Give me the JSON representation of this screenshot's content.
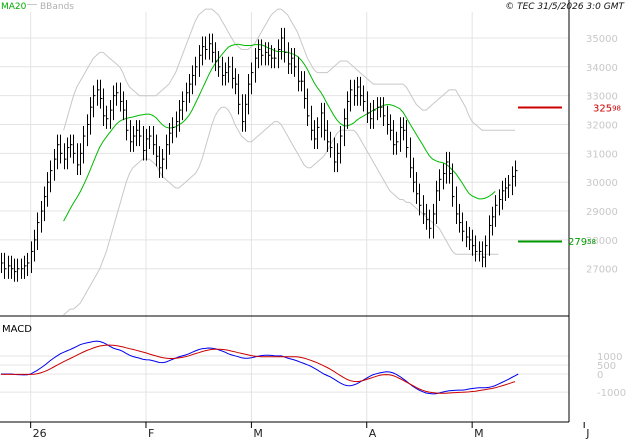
{
  "header": {
    "ma_label": "MA20",
    "bb_label": "BBands",
    "copyright": "© TEC 31/5/2026 3:0 GMT"
  },
  "macd_label": "MACD",
  "levels": [
    {
      "name": "resistance",
      "value": 325.98,
      "label_int": "325",
      "label_dec": "98",
      "color": "#cc0000"
    },
    {
      "name": "support",
      "value": 279.58,
      "label_int": "279",
      "label_dec": "58",
      "color": "#009900"
    }
  ],
  "colors": {
    "grid": "#e4e4e4",
    "bands": "#c8c8c8",
    "ma": "#00bb00",
    "bars": "#000000",
    "macd": "#0000ee",
    "signal": "#cc0000",
    "tick_text": "#c8c8c8",
    "ma_label": "#00aa00",
    "bb_label": "#b0b0b0"
  },
  "chart_data": [
    {
      "type": "ohlc",
      "title": "",
      "y_axis_side": "right",
      "ylim": [
        255,
        359
      ],
      "yticks": [
        270,
        280,
        290,
        300,
        310,
        320,
        330,
        340,
        350
      ],
      "ytick_labels": [
        "27000",
        "28000",
        "29000",
        "30000",
        "31000",
        "32000",
        "33000",
        "34000",
        "35000"
      ],
      "xticks": [
        {
          "label": "26",
          "index": 9
        },
        {
          "label": "F",
          "index": 44
        },
        {
          "label": "M",
          "index": 76
        },
        {
          "label": "A",
          "index": 111
        },
        {
          "label": "M",
          "index": 143
        },
        {
          "label": "J",
          "index": 177
        }
      ],
      "closes": [
        272,
        270,
        271,
        270,
        269,
        270,
        270,
        271,
        272,
        276,
        280,
        286,
        290,
        295,
        300,
        304,
        308,
        313,
        310,
        308,
        312,
        313,
        310,
        306,
        310,
        316,
        320,
        326,
        330,
        332,
        329,
        323,
        322,
        325,
        330,
        331,
        328,
        325,
        318,
        314,
        316,
        318,
        316,
        311,
        315,
        316,
        313,
        309,
        305,
        308,
        313,
        317,
        319,
        321,
        325,
        328,
        331,
        334,
        337,
        340,
        344,
        347,
        346,
        348,
        345,
        342,
        340,
        337,
        338,
        340,
        336,
        334,
        327,
        321,
        327,
        334,
        338,
        343,
        346,
        344,
        345,
        344,
        343,
        343,
        346,
        350,
        345,
        341,
        343,
        340,
        335,
        335,
        329,
        323,
        318,
        315,
        319,
        324,
        318,
        314,
        312,
        307,
        310,
        316,
        322,
        328,
        332,
        330,
        333,
        330,
        328,
        324,
        322,
        325,
        326,
        326,
        323,
        320,
        318,
        313,
        314,
        319,
        318,
        312,
        305,
        300,
        296,
        292,
        289,
        287,
        284,
        289,
        297,
        301,
        303,
        307,
        303,
        295,
        289,
        286,
        283,
        281,
        280,
        278,
        276,
        276,
        274,
        278,
        285,
        288,
        292,
        294,
        297,
        298,
        299,
        302,
        304
      ],
      "series": [
        {
          "name": "MA20",
          "values": [
            null,
            null,
            null,
            null,
            null,
            null,
            null,
            null,
            null,
            null,
            null,
            null,
            null,
            null,
            null,
            null,
            null,
            null,
            null,
            286.5,
            288.6,
            290.8,
            292.8,
            294.6,
            296.6,
            298.9,
            301.4,
            304.1,
            306.9,
            309.7,
            312.2,
            314.1,
            315.7,
            317.2,
            318.7,
            320.1,
            321.1,
            321.7,
            322.1,
            322.4,
            322.6,
            322.9,
            323.2,
            323.4,
            323.6,
            323.6,
            323.2,
            322.4,
            321.1,
            319.9,
            319.1,
            318.8,
            318.9,
            319.2,
            319.9,
            320.6,
            321.7,
            323.1,
            325.0,
            327.3,
            329.7,
            332.2,
            334.6,
            337.1,
            339.3,
            341.1,
            342.8,
            344.2,
            345.6,
            346.8,
            347.4,
            347.7,
            347.8,
            347.6,
            347.4,
            347.4,
            347.4,
            347.7,
            347.7,
            347.6,
            347.2,
            346.6,
            346.2,
            345.6,
            345.3,
            345.3,
            345.2,
            345.0,
            344.7,
            344.3,
            343.6,
            342.5,
            341.0,
            339.1,
            336.8,
            334.6,
            332.8,
            331.3,
            329.4,
            327.2,
            325.2,
            323.2,
            321.5,
            320.3,
            319.6,
            319.5,
            319.9,
            320.5,
            321.5,
            322.3,
            322.9,
            323.6,
            324.2,
            325.0,
            325.5,
            326.1,
            326.6,
            326.9,
            326.9,
            326.6,
            326.1,
            325.5,
            324.3,
            322.4,
            320.4,
            318.5,
            316.6,
            314.8,
            313.0,
            311.0,
            309.2,
            308.0,
            307.4,
            307.0,
            306.8,
            306.3,
            305.4,
            304.2,
            303.0,
            301.4,
            299.7,
            297.8,
            296.1,
            295.2,
            294.7,
            294.2,
            294.2,
            294.5,
            295.0,
            295.8,
            296.8
          ]
        },
        {
          "name": "BBands upper",
          "values": [
            null,
            null,
            null,
            null,
            null,
            null,
            null,
            null,
            null,
            null,
            null,
            null,
            null,
            null,
            null,
            null,
            null,
            null,
            null,
            318,
            322,
            326,
            330,
            333,
            335,
            337,
            339,
            341,
            343,
            344,
            345,
            345,
            344,
            343,
            342,
            341,
            340,
            338,
            335,
            333,
            332,
            331,
            330,
            330,
            330,
            330,
            330,
            330,
            331,
            332,
            333,
            334,
            336,
            338,
            341,
            344,
            347,
            350,
            353,
            356,
            358,
            359,
            360,
            360,
            360,
            359,
            358,
            356,
            354,
            352,
            350,
            348,
            347,
            346,
            346,
            346,
            347,
            348,
            350,
            352,
            354,
            356,
            358,
            359,
            360,
            360,
            359,
            358,
            356,
            354,
            352,
            349,
            346,
            343,
            341,
            339,
            338,
            338,
            338,
            338,
            339,
            340,
            341,
            342,
            342,
            342,
            341,
            340,
            339,
            338,
            337,
            336,
            335,
            334,
            334,
            334,
            334,
            334,
            334,
            334,
            334,
            334,
            334,
            333,
            331,
            329,
            327,
            326,
            325,
            325,
            326,
            327,
            328,
            329,
            330,
            331,
            332,
            332,
            332,
            330,
            328,
            326,
            323,
            321,
            320,
            319,
            318,
            318,
            318,
            318,
            318,
            318,
            318,
            318,
            318,
            318,
            318
          ]
        },
        {
          "name": "BBands lower",
          "values": [
            null,
            null,
            null,
            null,
            null,
            null,
            null,
            null,
            null,
            null,
            null,
            null,
            null,
            null,
            null,
            null,
            null,
            null,
            null,
            254,
            255,
            256,
            256,
            257,
            258,
            260,
            262,
            264,
            266,
            268,
            270,
            273,
            276,
            280,
            284,
            288,
            292,
            296,
            300,
            303,
            305,
            306,
            307,
            308,
            308,
            308,
            307,
            306,
            304,
            302,
            301,
            300,
            299,
            298,
            298,
            299,
            300,
            301,
            302,
            303,
            305,
            308,
            312,
            316,
            320,
            323,
            325,
            326,
            326,
            325,
            323,
            320,
            318,
            316,
            315,
            314,
            314,
            315,
            316,
            317,
            318,
            319,
            320,
            321,
            321,
            320,
            318,
            316,
            314,
            312,
            310,
            308,
            306,
            305,
            305,
            306,
            307,
            308,
            309,
            311,
            313,
            315,
            317,
            318,
            318,
            318,
            318,
            318,
            317,
            315,
            313,
            311,
            309,
            307,
            305,
            303,
            301,
            299,
            297,
            296,
            295,
            294,
            294,
            293,
            293,
            292,
            291,
            290,
            289,
            288,
            287,
            286,
            285,
            284,
            282,
            280,
            278,
            276,
            275,
            275,
            275,
            275,
            275,
            275,
            275,
            275,
            275,
            275,
            275,
            275,
            275,
            275
          ]
        }
      ]
    },
    {
      "type": "line",
      "title": "MACD",
      "y_axis_side": "right",
      "ylim": [
        -2600,
        3100
      ],
      "yticks": [
        -1000,
        0,
        500,
        1000
      ],
      "ytick_labels": [
        "-1000",
        "0",
        "500",
        "1000"
      ],
      "series": [
        {
          "name": "MACD",
          "values": [
            0,
            0,
            0,
            0,
            -20,
            -30,
            -40,
            -50,
            -40,
            0,
            100,
            200,
            330,
            450,
            600,
            750,
            880,
            1000,
            1120,
            1200,
            1280,
            1350,
            1440,
            1530,
            1620,
            1680,
            1720,
            1760,
            1800,
            1820,
            1800,
            1740,
            1650,
            1540,
            1440,
            1380,
            1330,
            1250,
            1140,
            1040,
            970,
            920,
            880,
            820,
            790,
            780,
            740,
            690,
            640,
            630,
            660,
            730,
            810,
            880,
            950,
            1000,
            1050,
            1120,
            1200,
            1280,
            1350,
            1400,
            1420,
            1440,
            1430,
            1400,
            1340,
            1280,
            1210,
            1120,
            1060,
            1010,
            960,
            900,
            870,
            870,
            900,
            940,
            980,
            1020,
            1040,
            1040,
            1030,
            1010,
            1000,
            1000,
            950,
            880,
            830,
            780,
            720,
            650,
            580,
            510,
            430,
            330,
            230,
            110,
            0,
            -80,
            -160,
            -270,
            -390,
            -500,
            -590,
            -640,
            -650,
            -610,
            -540,
            -440,
            -330,
            -220,
            -120,
            -30,
            20,
            60,
            100,
            120,
            110,
            60,
            -20,
            -130,
            -260,
            -400,
            -540,
            -680,
            -800,
            -900,
            -980,
            -1050,
            -1080,
            -1100,
            -1090,
            -1050,
            -1000,
            -960,
            -930,
            -910,
            -900,
            -890,
            -890,
            -870,
            -830,
            -800,
            -780,
            -760,
            -760,
            -760,
            -740,
            -700,
            -640,
            -560,
            -470,
            -380,
            -290,
            -190,
            -100,
            0
          ]
        },
        {
          "name": "Signal",
          "values": [
            -20,
            -20,
            -20,
            -20,
            -20,
            -20,
            -20,
            -20,
            -20,
            -20,
            -10,
            20,
            60,
            120,
            200,
            290,
            390,
            490,
            590,
            680,
            770,
            860,
            950,
            1040,
            1130,
            1220,
            1300,
            1370,
            1440,
            1500,
            1550,
            1580,
            1600,
            1600,
            1590,
            1570,
            1540,
            1500,
            1450,
            1400,
            1360,
            1320,
            1270,
            1220,
            1170,
            1110,
            1050,
            1000,
            950,
            910,
            880,
            860,
            860,
            870,
            890,
            920,
            960,
            1010,
            1070,
            1130,
            1180,
            1240,
            1290,
            1330,
            1360,
            1370,
            1370,
            1360,
            1340,
            1310,
            1270,
            1230,
            1180,
            1140,
            1100,
            1060,
            1020,
            990,
            970,
            960,
            960,
            960,
            960,
            960,
            960,
            960,
            960,
            960,
            960,
            960,
            950,
            920,
            880,
            820,
            760,
            690,
            620,
            540,
            450,
            360,
            260,
            150,
            30,
            -90,
            -200,
            -300,
            -370,
            -410,
            -420,
            -400,
            -360,
            -300,
            -240,
            -180,
            -120,
            -70,
            -40,
            -30,
            -50,
            -90,
            -160,
            -250,
            -340,
            -440,
            -540,
            -640,
            -740,
            -830,
            -900,
            -960,
            -1000,
            -1030,
            -1050,
            -1060,
            -1060,
            -1060,
            -1050,
            -1040,
            -1030,
            -1020,
            -1010,
            -1000,
            -990,
            -970,
            -950,
            -920,
            -890,
            -860,
            -830,
            -800,
            -760,
            -710,
            -660,
            -600,
            -540,
            -480,
            -420
          ]
        }
      ]
    }
  ]
}
